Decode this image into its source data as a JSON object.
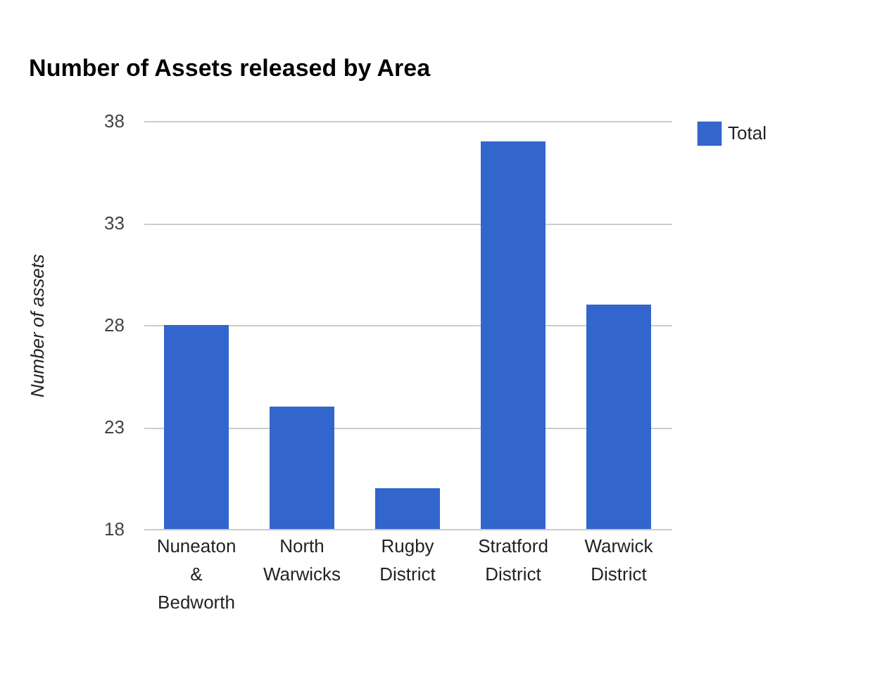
{
  "chart_data": {
    "type": "bar",
    "title": "Number of Assets released by Area",
    "ylabel": "Number of assets",
    "categories": [
      "Nuneaton & Bedworth",
      "North Warwicks",
      "Rugby District",
      "Stratford District",
      "Warwick District"
    ],
    "series": [
      {
        "name": "Total",
        "color": "#3366cc",
        "values": [
          28,
          24,
          20,
          37,
          29
        ]
      }
    ],
    "ylim": [
      18,
      38
    ],
    "yticks": [
      18,
      23,
      28,
      33,
      38
    ],
    "grid": "y",
    "legend": "top right"
  }
}
